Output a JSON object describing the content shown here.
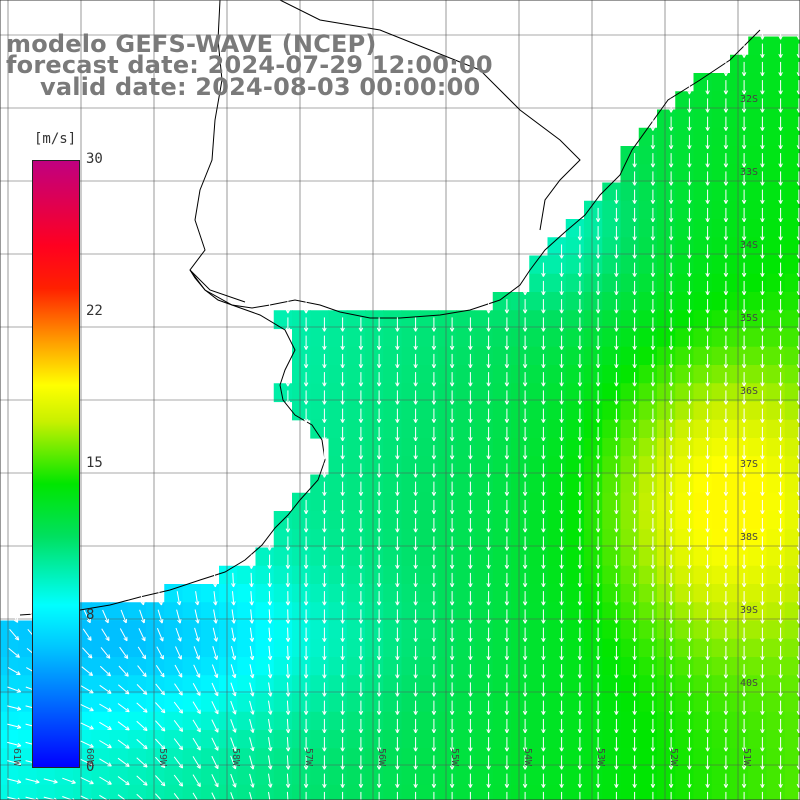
{
  "header": {
    "model": "modelo GEFS-WAVE (NCEP)",
    "forecast": "forecast date: 2024-07-29 12:00:00",
    "valid": "valid date: 2024-08-03 00:00:00"
  },
  "colorbar": {
    "unit": "[m/s]",
    "min": 0,
    "max": 30,
    "ticks": [
      "30",
      "22",
      "15",
      "8",
      "0"
    ]
  },
  "lat_labels": [
    "32S",
    "33S",
    "34S",
    "35S",
    "36S",
    "37S",
    "38S",
    "39S",
    "40S"
  ],
  "lon_labels": [
    "61W",
    "60W",
    "59W",
    "58W",
    "57W",
    "56W",
    "55W",
    "54W",
    "53W",
    "52W",
    "51W"
  ],
  "colors": {
    "land": "#ffffff",
    "coast": "#000000",
    "grid": "#555555",
    "arrows": "#ffffff"
  },
  "wind_field": {
    "units": "m/s",
    "description_direction": "mostly from north (arrows pointing south), westerly near bottom-left",
    "min_speed": 5,
    "max_speed": 19
  }
}
